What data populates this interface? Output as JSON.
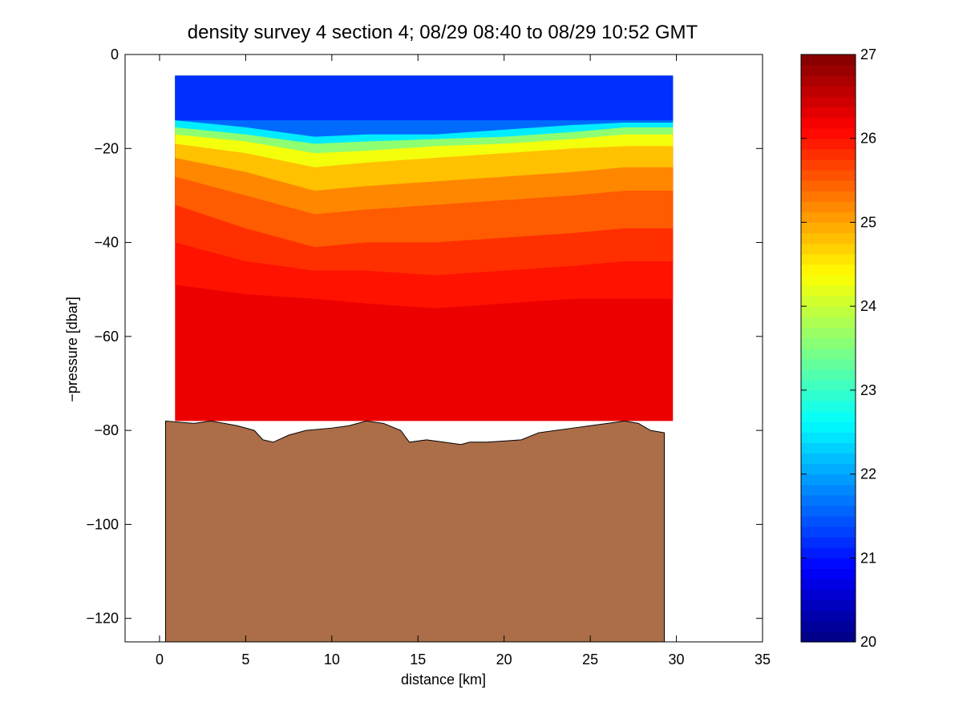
{
  "chart_data": {
    "type": "heatmap",
    "title": "density survey 4 section 4; 08/29 08:40 to 08/29 10:52 GMT",
    "xlabel": "distance [km]",
    "ylabel": "−pressure [dbar]",
    "xlim": [
      -2,
      35
    ],
    "ylim": [
      -125,
      0
    ],
    "xticks": [
      0,
      5,
      10,
      15,
      20,
      25,
      30,
      35
    ],
    "xtick_labels": [
      "0",
      "5",
      "10",
      "15",
      "20",
      "25",
      "30",
      "35"
    ],
    "yticks": [
      0,
      -20,
      -40,
      -60,
      -80,
      -100,
      -120
    ],
    "ytick_labels": [
      "0",
      "−20",
      "−40",
      "−60",
      "−80",
      "−100",
      "−120"
    ],
    "grid": false,
    "colormap": "jet",
    "colorbar": {
      "clim": [
        20,
        27
      ],
      "ticks": [
        20,
        21,
        22,
        23,
        24,
        25,
        26,
        27
      ],
      "tick_labels": [
        "20",
        "21",
        "22",
        "23",
        "24",
        "25",
        "26",
        "27"
      ],
      "levels": 56
    },
    "data_region": {
      "x_start": 0.9,
      "x_end": 29.8,
      "surface_depth": -4.5,
      "bottom_depth": -78
    },
    "surface_layer": {
      "value": 21.2,
      "depth_range": [
        -4.5,
        -14
      ]
    },
    "density_layers": [
      {
        "x": [
          0.9,
          5,
          9,
          12,
          16,
          20,
          24,
          27,
          29.8
        ],
        "y": [
          -14,
          -15.5,
          -17.5,
          -17,
          -17,
          -16,
          -15,
          -14.5,
          -14.5
        ],
        "value": 21.6
      },
      {
        "x": [
          0.9,
          5,
          9,
          12,
          16,
          20,
          24,
          27,
          29.8
        ],
        "y": [
          -15.5,
          -17,
          -19,
          -18.5,
          -18,
          -17.5,
          -16.5,
          -15.5,
          -15.5
        ],
        "value": 22.5
      },
      {
        "x": [
          0.9,
          5,
          9,
          12,
          16,
          20,
          24,
          27,
          29.8
        ],
        "y": [
          -17,
          -18.5,
          -21,
          -20.5,
          -19.5,
          -19,
          -18,
          -17,
          -17
        ],
        "value": 23.6
      },
      {
        "x": [
          0.9,
          5,
          9,
          12,
          16,
          20,
          24,
          27,
          29.8
        ],
        "y": [
          -19,
          -21,
          -24,
          -23,
          -22,
          -21,
          -20,
          -19.5,
          -19.5
        ],
        "value": 24.3
      },
      {
        "x": [
          0.9,
          5,
          9,
          12,
          16,
          20,
          24,
          27,
          29.8
        ],
        "y": [
          -22,
          -25,
          -29,
          -28,
          -27,
          -26,
          -25,
          -24,
          -24
        ],
        "value": 24.8
      },
      {
        "x": [
          0.9,
          5,
          9,
          12,
          16,
          20,
          24,
          27,
          29.8
        ],
        "y": [
          -26,
          -30,
          -34,
          -33,
          -32,
          -31,
          -30,
          -29,
          -29
        ],
        "value": 25.2
      },
      {
        "x": [
          0.9,
          5,
          9,
          12,
          16,
          20,
          24,
          27,
          29.8
        ],
        "y": [
          -32,
          -37,
          -41,
          -40,
          -40,
          -39,
          -38,
          -37,
          -37
        ],
        "value": 25.5
      },
      {
        "x": [
          0.9,
          5,
          9,
          12,
          16,
          20,
          24,
          27,
          29.8
        ],
        "y": [
          -40,
          -44,
          -46,
          -46,
          -47,
          -46,
          -45,
          -44,
          -44
        ],
        "value": 25.8
      },
      {
        "x": [
          0.9,
          5,
          9,
          12,
          16,
          20,
          24,
          27,
          29.8
        ],
        "y": [
          -49,
          -51,
          -52,
          -53,
          -54,
          -53,
          -52,
          -52,
          -52
        ],
        "value": 26.0
      },
      {
        "x": [
          0.9,
          5,
          9,
          12,
          16,
          20,
          24,
          27,
          29.8
        ],
        "y": [
          -78,
          -78,
          -78,
          -78,
          -78,
          -78,
          -78,
          -78,
          -78
        ],
        "value": 26.25
      }
    ],
    "bottom_profile": {
      "x": [
        0.35,
        2,
        3,
        4.5,
        5.5,
        6,
        6.6,
        7.5,
        8.5,
        10,
        11,
        12,
        13,
        14,
        14.5,
        15.5,
        16.5,
        17.5,
        18,
        19,
        21,
        22,
        23,
        24,
        25,
        26,
        27,
        27.8,
        28.5,
        29.3
      ],
      "y": [
        -78,
        -78.5,
        -78,
        -79,
        -80,
        -82,
        -82.5,
        -81,
        -80,
        -79.5,
        -79,
        -78,
        -78.5,
        -80,
        -82.5,
        -82,
        -82.5,
        -83,
        -82.5,
        -82.5,
        -82,
        -80.5,
        -80,
        -79.5,
        -79,
        -78.5,
        -78,
        -78.5,
        -80,
        -80.5
      ],
      "fill": "#ab6e48"
    }
  }
}
